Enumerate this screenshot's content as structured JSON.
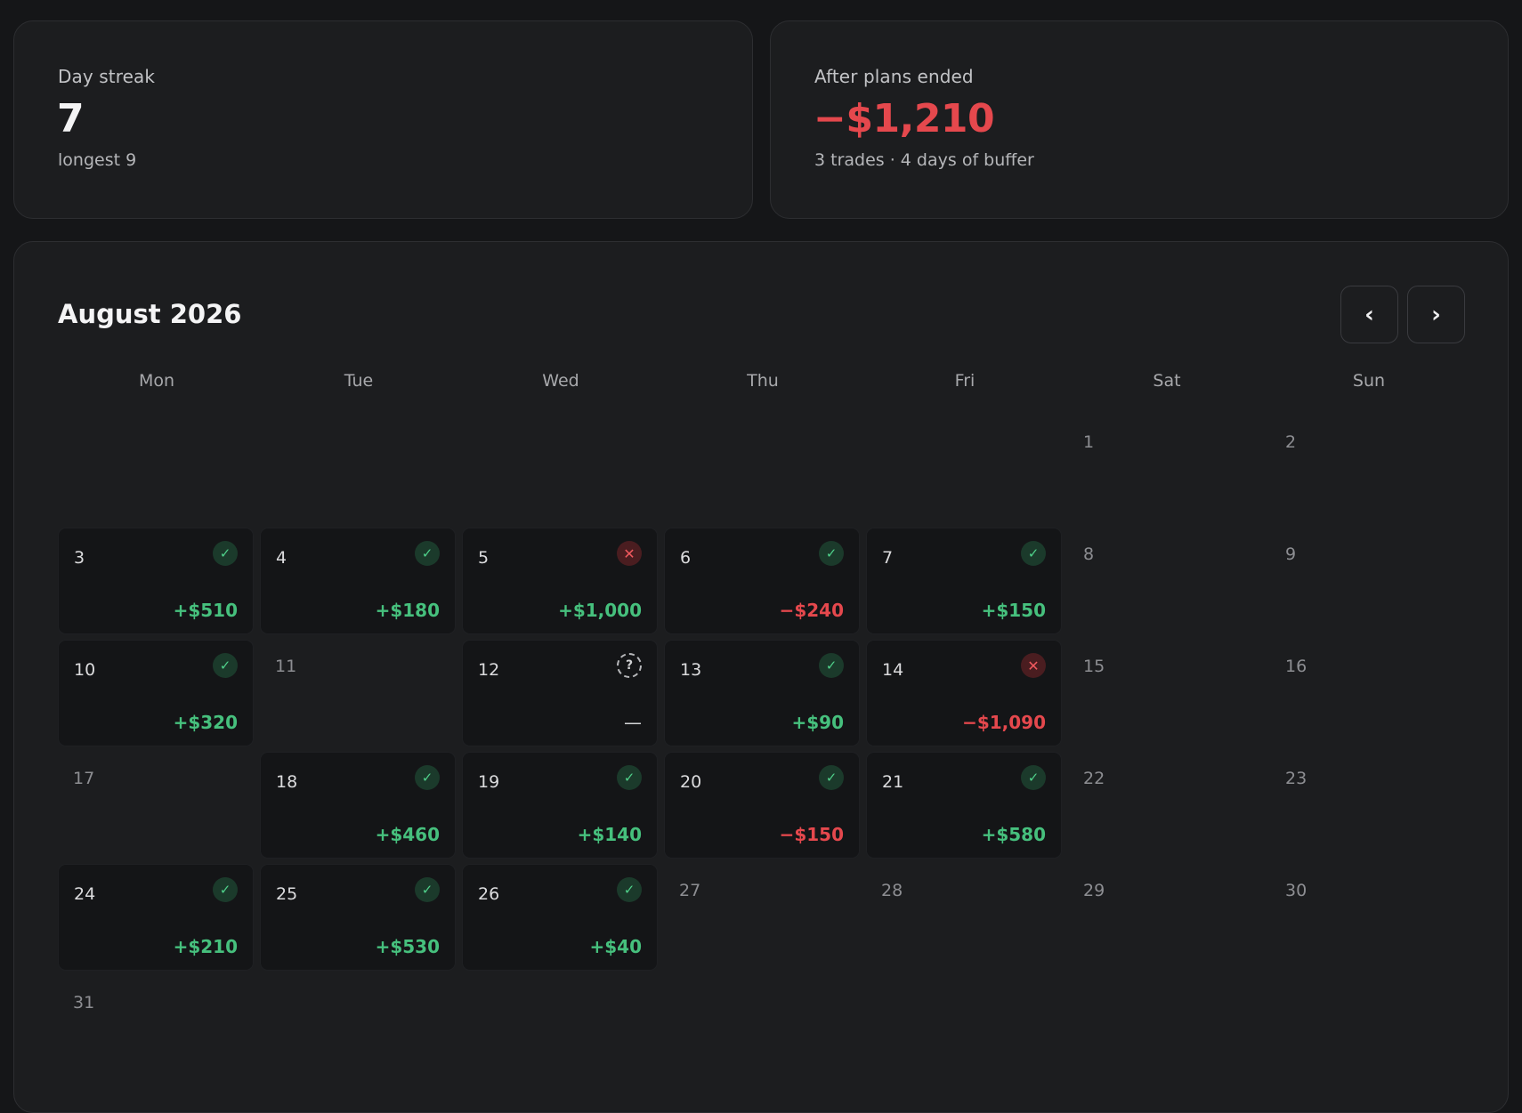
{
  "stats": {
    "streak": {
      "label": "Day streak",
      "value": "7",
      "sub": "longest 9"
    },
    "plans": {
      "label": "After plans ended",
      "value": "−$1,210",
      "sub": "3 trades · 4 days of buffer"
    }
  },
  "calendar": {
    "title": "August 2026",
    "prev_label": "‹",
    "next_label": "›",
    "weekdays": [
      "Mon",
      "Tue",
      "Wed",
      "Thu",
      "Fri",
      "Sat",
      "Sun"
    ],
    "first_weekday_index": 5,
    "days": [
      {
        "day": "1"
      },
      {
        "day": "2"
      },
      {
        "day": "3",
        "status": "ok",
        "pnl": "+$510",
        "tone": "pos"
      },
      {
        "day": "4",
        "status": "ok",
        "pnl": "+$180",
        "tone": "pos"
      },
      {
        "day": "5",
        "status": "bad",
        "pnl": "+$1,000",
        "tone": "pos"
      },
      {
        "day": "6",
        "status": "ok",
        "pnl": "−$240",
        "tone": "neg"
      },
      {
        "day": "7",
        "status": "ok",
        "pnl": "+$150",
        "tone": "pos"
      },
      {
        "day": "8"
      },
      {
        "day": "9"
      },
      {
        "day": "10",
        "status": "ok",
        "pnl": "+$320",
        "tone": "pos"
      },
      {
        "day": "11"
      },
      {
        "day": "12",
        "status": "unknown",
        "pnl": "—",
        "tone": "none"
      },
      {
        "day": "13",
        "status": "ok",
        "pnl": "+$90",
        "tone": "pos"
      },
      {
        "day": "14",
        "status": "bad",
        "pnl": "−$1,090",
        "tone": "neg"
      },
      {
        "day": "15"
      },
      {
        "day": "16"
      },
      {
        "day": "17"
      },
      {
        "day": "18",
        "status": "ok",
        "pnl": "+$460",
        "tone": "pos"
      },
      {
        "day": "19",
        "status": "ok",
        "pnl": "+$140",
        "tone": "pos"
      },
      {
        "day": "20",
        "status": "ok",
        "pnl": "−$150",
        "tone": "neg"
      },
      {
        "day": "21",
        "status": "ok",
        "pnl": "+$580",
        "tone": "pos"
      },
      {
        "day": "22"
      },
      {
        "day": "23"
      },
      {
        "day": "24",
        "status": "ok",
        "pnl": "+$210",
        "tone": "pos"
      },
      {
        "day": "25",
        "status": "ok",
        "pnl": "+$530",
        "tone": "pos"
      },
      {
        "day": "26",
        "status": "ok",
        "pnl": "+$40",
        "tone": "pos"
      },
      {
        "day": "27"
      },
      {
        "day": "28"
      },
      {
        "day": "29"
      },
      {
        "day": "30"
      },
      {
        "day": "31"
      }
    ]
  },
  "status_glyphs": {
    "ok": "✓",
    "bad": "✕",
    "unknown": "?"
  },
  "status_icons": {
    "ok": "check-icon",
    "bad": "x-icon",
    "unknown": "question-icon"
  },
  "colors": {
    "positive": "#46c07d",
    "negative": "#e5484d",
    "background": "#151618",
    "card": "#1c1d1f"
  }
}
